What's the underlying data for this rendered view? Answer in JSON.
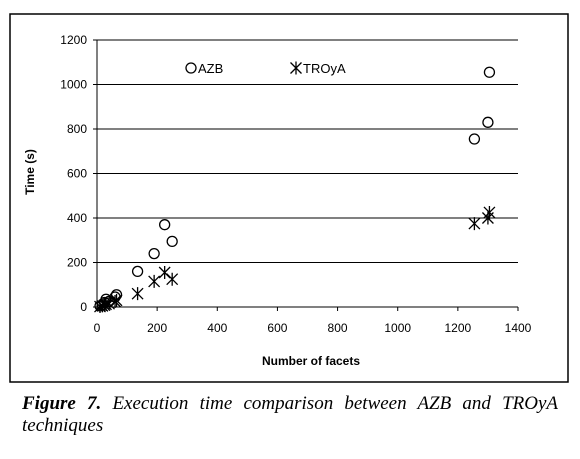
{
  "chart_data": {
    "type": "scatter",
    "xlabel": "Number of facets",
    "ylabel": "Time (s)",
    "xlim": [
      0,
      1400
    ],
    "ylim": [
      0,
      1200
    ],
    "xticks": [
      0,
      200,
      400,
      600,
      800,
      1000,
      1200,
      1400
    ],
    "yticks": [
      0,
      200,
      400,
      600,
      800,
      1000,
      1200
    ],
    "grid": "horizontal",
    "legend_position": "top",
    "series": [
      {
        "name": "AZB",
        "marker": "circle",
        "points": [
          [
            10,
            5
          ],
          [
            18,
            10
          ],
          [
            25,
            20
          ],
          [
            30,
            35
          ],
          [
            40,
            25
          ],
          [
            60,
            45
          ],
          [
            65,
            55
          ],
          [
            135,
            160
          ],
          [
            190,
            240
          ],
          [
            225,
            370
          ],
          [
            250,
            295
          ],
          [
            1255,
            755
          ],
          [
            1300,
            830
          ],
          [
            1305,
            1055
          ]
        ]
      },
      {
        "name": "TROyA",
        "marker": "asterisk",
        "points": [
          [
            10,
            2
          ],
          [
            18,
            5
          ],
          [
            25,
            8
          ],
          [
            30,
            12
          ],
          [
            40,
            15
          ],
          [
            60,
            25
          ],
          [
            65,
            30
          ],
          [
            135,
            60
          ],
          [
            190,
            115
          ],
          [
            225,
            155
          ],
          [
            250,
            125
          ],
          [
            1255,
            375
          ],
          [
            1300,
            400
          ],
          [
            1305,
            425
          ]
        ]
      }
    ]
  },
  "caption": {
    "label": "Figure 7.",
    "text": " Execution time comparison between AZB and TROyA techniques"
  }
}
